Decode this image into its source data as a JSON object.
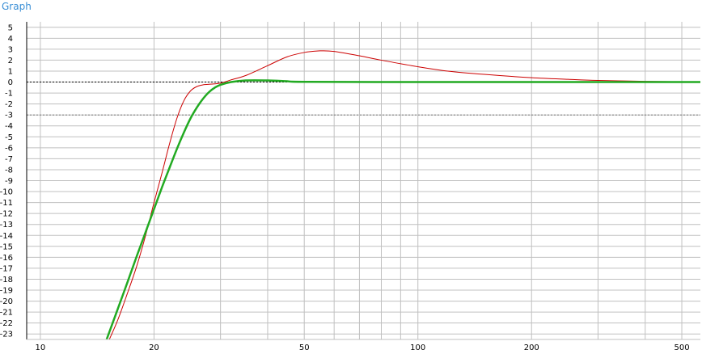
{
  "window": {
    "title": "Graph"
  },
  "chart_data": {
    "type": "line",
    "title": "",
    "xlabel": "",
    "ylabel": "",
    "x_scale": "log",
    "xlim": [
      9.2,
      560
    ],
    "ylim": [
      -23.5,
      5.5
    ],
    "x_tick_labels": [
      10,
      20,
      50,
      100,
      200,
      500
    ],
    "x_minor_gridlines": [
      30,
      40,
      60,
      70,
      80,
      90,
      300,
      400
    ],
    "y_ticks": [
      5,
      4,
      3,
      2,
      1,
      0,
      -1,
      -2,
      -3,
      -4,
      -5,
      -6,
      -7,
      -8,
      -9,
      -10,
      -11,
      -12,
      -13,
      -14,
      -15,
      -16,
      -17,
      -18,
      -19,
      -20,
      -21,
      -22,
      -23
    ],
    "reference_lines": [
      {
        "y": 0,
        "style": "dashed",
        "color": "#000000"
      },
      {
        "y": -3,
        "style": "dashed",
        "color": "#777777"
      }
    ],
    "grid": true,
    "colors": {
      "background": "#ffffff",
      "grid": "#c0c0c0",
      "axis": "#000000"
    },
    "series": [
      {
        "color": "#cc0000",
        "line_width": 1,
        "x": [
          15.0,
          16.0,
          17.0,
          18.0,
          19.0,
          20.0,
          21.0,
          22.0,
          23.0,
          24.0,
          25.0,
          26.0,
          27.0,
          28.0,
          30.0,
          32.0,
          35.0,
          40.0,
          45.0,
          50.0,
          55.0,
          60.0,
          70.0,
          80.0,
          100.0,
          120.0,
          150.0,
          200.0,
          250.0,
          300.0,
          400.0,
          500.0,
          560.0
        ],
        "y": [
          -24.0,
          -21.8,
          -19.3,
          -16.8,
          -14.0,
          -11.0,
          -8.3,
          -5.6,
          -3.3,
          -1.7,
          -0.8,
          -0.4,
          -0.25,
          -0.2,
          -0.1,
          0.2,
          0.6,
          1.5,
          2.3,
          2.7,
          2.85,
          2.8,
          2.4,
          2.0,
          1.4,
          1.0,
          0.7,
          0.4,
          0.25,
          0.15,
          0.07,
          0.03,
          0.02
        ]
      },
      {
        "color": "#22aa22",
        "line_width": 2.5,
        "x": [
          14.8,
          16.0,
          17.0,
          18.0,
          19.0,
          20.0,
          21.0,
          22.0,
          23.0,
          24.0,
          25.0,
          26.0,
          27.0,
          28.0,
          29.0,
          30.0,
          32.0,
          35.0,
          40.0,
          45.0,
          50.0,
          100.0,
          200.0,
          560.0
        ],
        "y": [
          -24.0,
          -20.8,
          -18.3,
          -15.9,
          -13.7,
          -11.6,
          -9.6,
          -7.8,
          -6.1,
          -4.6,
          -3.3,
          -2.3,
          -1.5,
          -0.9,
          -0.5,
          -0.25,
          0.0,
          0.15,
          0.15,
          0.08,
          0.02,
          0.0,
          0.0,
          0.0
        ]
      }
    ]
  }
}
